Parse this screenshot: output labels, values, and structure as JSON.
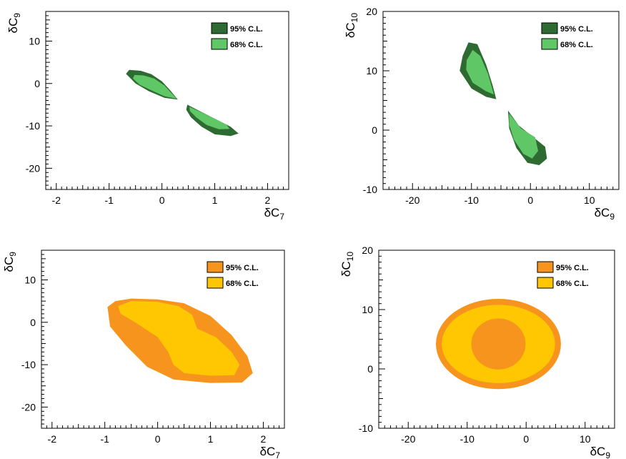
{
  "chart_data": [
    {
      "type": "contour",
      "xlabel": {
        "main": "δC",
        "sub": "7"
      },
      "ylabel": {
        "main": "δC",
        "sub": "9"
      },
      "xlim": [
        -2.2,
        2.4
      ],
      "ylim": [
        -25,
        17
      ],
      "xticks": [
        -2,
        -1,
        0,
        1,
        2
      ],
      "yticks": [
        -20,
        -10,
        0,
        10
      ],
      "legend_position": "top-right",
      "grid": false,
      "series": [
        {
          "name": "95% C.L.",
          "color": "#2e6b32",
          "regions": [
            [
              [
                -0.62,
                3.2
              ],
              [
                -0.4,
                3.0
              ],
              [
                -0.2,
                2.2
              ],
              [
                0.0,
                0.5
              ],
              [
                0.15,
                -1.5
              ],
              [
                0.3,
                -3.8
              ],
              [
                0.05,
                -3.4
              ],
              [
                -0.25,
                -1.8
              ],
              [
                -0.5,
                0.0
              ],
              [
                -0.68,
                2.3
              ]
            ],
            [
              [
                0.48,
                -5.0
              ],
              [
                0.7,
                -6.4
              ],
              [
                1.0,
                -8.3
              ],
              [
                1.3,
                -10.2
              ],
              [
                1.45,
                -11.8
              ],
              [
                1.3,
                -12.4
              ],
              [
                1.0,
                -12.0
              ],
              [
                0.75,
                -10.2
              ],
              [
                0.55,
                -8.0
              ],
              [
                0.46,
                -6.2
              ]
            ]
          ]
        },
        {
          "name": "68% C.L.",
          "color": "#60c767",
          "regions": [
            [
              [
                -0.52,
                2.0
              ],
              [
                -0.35,
                1.9
              ],
              [
                -0.15,
                1.2
              ],
              [
                0.05,
                -0.5
              ],
              [
                0.28,
                -3.6
              ],
              [
                0.05,
                -3.0
              ],
              [
                -0.2,
                -1.6
              ],
              [
                -0.42,
                -0.3
              ],
              [
                -0.55,
                1.2
              ]
            ],
            [
              [
                0.52,
                -5.5
              ],
              [
                0.75,
                -6.8
              ],
              [
                1.0,
                -8.3
              ],
              [
                1.22,
                -9.7
              ],
              [
                1.28,
                -10.7
              ],
              [
                1.08,
                -10.8
              ],
              [
                0.85,
                -9.8
              ],
              [
                0.65,
                -8.0
              ],
              [
                0.53,
                -6.5
              ]
            ]
          ]
        }
      ]
    },
    {
      "type": "contour",
      "xlabel": {
        "main": "δC",
        "sub": "9"
      },
      "ylabel": {
        "main": "δC",
        "sub": "10"
      },
      "xlim": [
        -25,
        15
      ],
      "ylim": [
        -10,
        20
      ],
      "xticks": [
        -20,
        -10,
        0,
        10
      ],
      "yticks": [
        -10,
        0,
        10,
        20
      ],
      "legend_position": "top-right",
      "grid": false,
      "series": [
        {
          "name": "95% C.L.",
          "color": "#2e6b32",
          "regions": [
            [
              [
                -11.5,
                12.5
              ],
              [
                -10.5,
                14.8
              ],
              [
                -9.0,
                14.5
              ],
              [
                -7.5,
                11.0
              ],
              [
                -6.4,
                7.5
              ],
              [
                -5.8,
                5.2
              ],
              [
                -7.5,
                5.6
              ],
              [
                -10.0,
                7.0
              ],
              [
                -12.0,
                10.0
              ]
            ],
            [
              [
                -3.8,
                3.3
              ],
              [
                -2.0,
                0.8
              ],
              [
                0.5,
                -1.2
              ],
              [
                2.5,
                -2.8
              ],
              [
                2.8,
                -4.8
              ],
              [
                1.5,
                -5.9
              ],
              [
                -0.5,
                -5.5
              ],
              [
                -2.4,
                -3.0
              ],
              [
                -3.6,
                0.3
              ]
            ]
          ]
        },
        {
          "name": "68% C.L.",
          "color": "#60c767",
          "regions": [
            [
              [
                -10.8,
                11.8
              ],
              [
                -9.8,
                13.5
              ],
              [
                -8.5,
                12.5
              ],
              [
                -7.2,
                9.5
              ],
              [
                -6.2,
                6.0
              ],
              [
                -7.6,
                6.6
              ],
              [
                -9.8,
                8.0
              ],
              [
                -10.9,
                10.2
              ]
            ],
            [
              [
                -3.6,
                2.8
              ],
              [
                -1.6,
                0.3
              ],
              [
                0.8,
                -1.2
              ],
              [
                1.3,
                -3.5
              ],
              [
                0.3,
                -4.8
              ],
              [
                -1.2,
                -4.0
              ],
              [
                -2.8,
                -1.6
              ],
              [
                -3.6,
                1.0
              ]
            ]
          ]
        }
      ]
    },
    {
      "type": "contour",
      "xlabel": {
        "main": "δC",
        "sub": "7"
      },
      "ylabel": {
        "main": "δC",
        "sub": "9"
      },
      "xlim": [
        -2.2,
        2.4
      ],
      "ylim": [
        -25,
        17
      ],
      "xticks": [
        -2,
        -1,
        0,
        1,
        2
      ],
      "yticks": [
        -20,
        -10,
        0,
        10
      ],
      "legend_position": "top-right",
      "grid": false,
      "series": [
        {
          "name": "95% C.L.",
          "color": "#f7941e",
          "regions": [
            [
              [
                -0.95,
                3.6
              ],
              [
                -0.8,
                5.0
              ],
              [
                -0.5,
                5.6
              ],
              [
                0.0,
                5.4
              ],
              [
                0.5,
                4.5
              ],
              [
                1.0,
                1.5
              ],
              [
                1.4,
                -3.0
              ],
              [
                1.7,
                -8.0
              ],
              [
                1.8,
                -12.0
              ],
              [
                1.6,
                -14.2
              ],
              [
                1.0,
                -14.3
              ],
              [
                0.3,
                -13.5
              ],
              [
                -0.2,
                -10.5
              ],
              [
                -0.6,
                -5.5
              ],
              [
                -0.9,
                -1.0
              ]
            ]
          ]
        },
        {
          "name": "68% C.L.",
          "color": "#ffc702",
          "regions": [
            [
              [
                -0.75,
                3.8
              ],
              [
                -0.5,
                5.0
              ],
              [
                0.0,
                4.8
              ],
              [
                0.4,
                3.8
              ],
              [
                0.65,
                1.8
              ],
              [
                0.75,
                -1.5
              ],
              [
                1.1,
                -3.5
              ],
              [
                1.4,
                -7.0
              ],
              [
                1.55,
                -10.0
              ],
              [
                1.45,
                -12.5
              ],
              [
                1.0,
                -12.6
              ],
              [
                0.5,
                -12.0
              ],
              [
                0.3,
                -10.0
              ],
              [
                0.2,
                -7.0
              ],
              [
                0.0,
                -3.5
              ],
              [
                -0.4,
                -0.2
              ],
              [
                -0.7,
                2.0
              ]
            ]
          ]
        }
      ]
    },
    {
      "type": "contour",
      "xlabel": {
        "main": "δC",
        "sub": "9"
      },
      "ylabel": {
        "main": "δC",
        "sub": "10"
      },
      "xlim": [
        -25,
        15
      ],
      "ylim": [
        -10,
        20
      ],
      "xticks": [
        -20,
        -10,
        0,
        10
      ],
      "yticks": [
        -10,
        0,
        10,
        20
      ],
      "legend_position": "top-right",
      "grid": false,
      "series": [
        {
          "name": "95% C.L.",
          "color": "#f7941e",
          "regions": [
            {
              "ellipse": true,
              "cx": -4.7,
              "cy": 4.2,
              "rx": 10.6,
              "ry": 7.6
            }
          ]
        },
        {
          "name": "68% C.L.",
          "color": "#ffc702",
          "regions": [
            {
              "ellipse": true,
              "cx": -4.7,
              "cy": 4.2,
              "rx": 9.6,
              "ry": 6.6
            }
          ]
        },
        {
          "name": "",
          "color": "#f7941e",
          "regions": [
            {
              "ellipse": true,
              "cx": -4.7,
              "cy": 4.2,
              "rx": 4.6,
              "ry": 4.3
            }
          ]
        }
      ]
    }
  ]
}
